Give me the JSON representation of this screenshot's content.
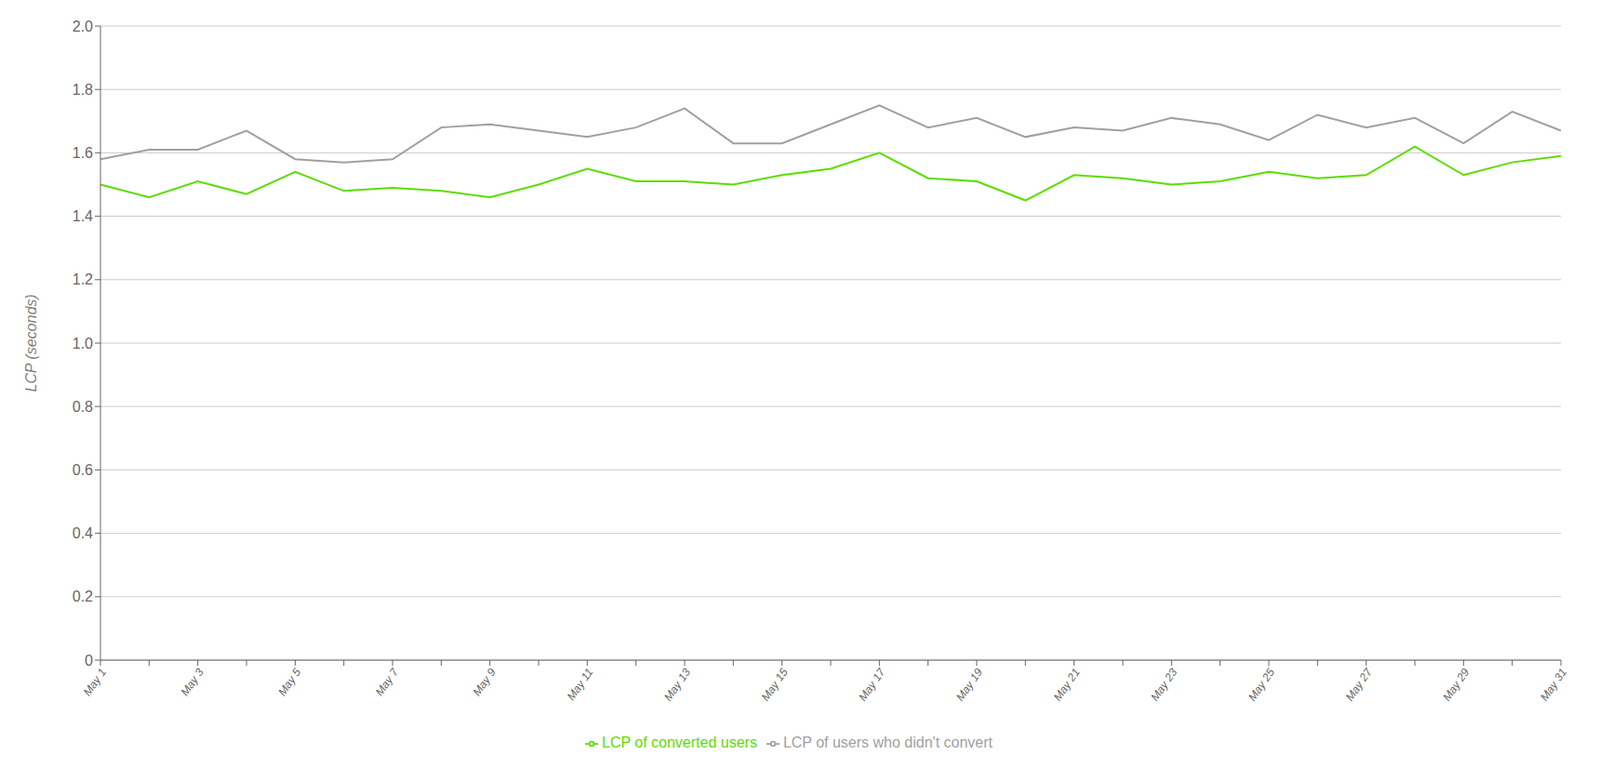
{
  "chart_data": {
    "type": "line",
    "y_label": "LCP (seconds)",
    "categories": [
      "May 1",
      null,
      "May 3",
      null,
      "May 5",
      null,
      "May 7",
      null,
      "May 9",
      null,
      "May 11",
      null,
      "May 13",
      null,
      "May 15",
      null,
      "May 17",
      null,
      "May 19",
      null,
      "May 21",
      null,
      "May 23",
      null,
      "May 25",
      null,
      "May 27",
      null,
      "May 29",
      null,
      "May 31"
    ],
    "series": [
      {
        "name": "LCP of users who didn't convert",
        "color": "#a0a0a0",
        "values": [
          1.58,
          1.61,
          1.61,
          1.67,
          1.58,
          1.57,
          1.58,
          1.68,
          1.69,
          1.67,
          1.65,
          1.68,
          1.74,
          1.63,
          1.63,
          1.69,
          1.75,
          1.68,
          1.71,
          1.65,
          1.68,
          1.67,
          1.71,
          1.69,
          1.64,
          1.72,
          1.68,
          1.71,
          1.63,
          1.73,
          1.67
        ]
      },
      {
        "name": "LCP of converted users",
        "color": "#5cdd00",
        "values": [
          1.5,
          1.46,
          1.51,
          1.47,
          1.54,
          1.48,
          1.49,
          1.48,
          1.46,
          1.5,
          1.55,
          1.51,
          1.51,
          1.5,
          1.53,
          1.55,
          1.6,
          1.52,
          1.51,
          1.45,
          1.53,
          1.52,
          1.5,
          1.51,
          1.54,
          1.52,
          1.53,
          1.62,
          1.53,
          1.57,
          1.59
        ]
      }
    ],
    "ylim": [
      0,
      2.0
    ],
    "yticks": [
      0,
      0.2,
      0.4,
      0.6,
      0.8,
      {
        "value": 1.0,
        "label": "1.0"
      },
      1.2,
      1.4,
      1.6,
      1.8,
      {
        "value": 2.0,
        "label": "2.0"
      }
    ],
    "grid": true,
    "legend": "bottom"
  }
}
